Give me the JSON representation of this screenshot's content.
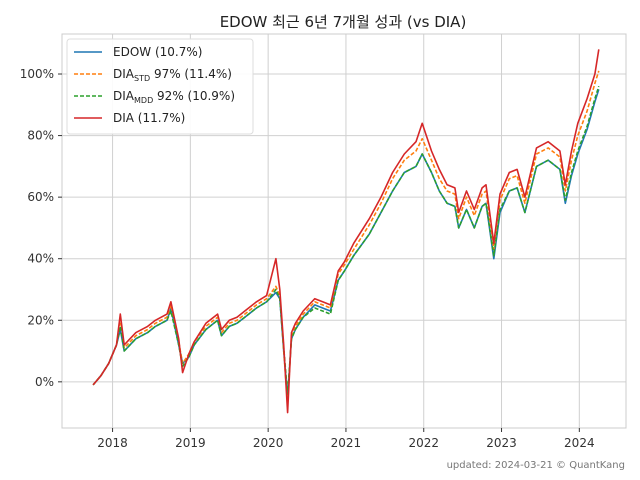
{
  "chart_data": {
    "type": "line",
    "title": "EDOW 최근 6년 7개월 성과 (vs DIA)",
    "xlabel": "",
    "ylabel": "",
    "x_ticks": [
      "2018",
      "2019",
      "2020",
      "2021",
      "2022",
      "2023",
      "2024"
    ],
    "y_ticks": [
      "0%",
      "20%",
      "40%",
      "60%",
      "80%",
      "100%"
    ],
    "ylim": [
      -15,
      113
    ],
    "xlim": [
      2017.35,
      2024.6
    ],
    "grid": true,
    "legend_position": "top-left",
    "legend": [
      {
        "label": "EDOW (10.7%)",
        "parts": [
          {
            "t": "EDOW (10.7%)",
            "sub": false
          }
        ]
      },
      {
        "label": "DIASTD 97% (11.4%)",
        "parts": [
          {
            "t": "DIA",
            "sub": false
          },
          {
            "t": "STD",
            "sub": true
          },
          {
            "t": " 97% (11.4%)",
            "sub": false
          }
        ]
      },
      {
        "label": "DIAMDD 92% (10.9%)",
        "parts": [
          {
            "t": "DIA",
            "sub": false
          },
          {
            "t": "MDD",
            "sub": true
          },
          {
            "t": " 92% (10.9%)",
            "sub": false
          }
        ]
      },
      {
        "label": "DIA (11.7%)",
        "parts": [
          {
            "t": "DIA (11.7%)",
            "sub": false
          }
        ]
      }
    ],
    "series": [
      {
        "name": "EDOW (10.7%)",
        "color": "#1f77b4",
        "dashed": false,
        "x": [
          2017.75,
          2017.85,
          2017.95,
          2018.05,
          2018.1,
          2018.15,
          2018.3,
          2018.45,
          2018.55,
          2018.7,
          2018.75,
          2018.85,
          2018.9,
          2018.98,
          2019.05,
          2019.2,
          2019.35,
          2019.4,
          2019.5,
          2019.6,
          2019.7,
          2019.85,
          2019.98,
          2020.1,
          2020.15,
          2020.2,
          2020.25,
          2020.3,
          2020.35,
          2020.45,
          2020.6,
          2020.7,
          2020.8,
          2020.9,
          2020.98,
          2021.1,
          2021.3,
          2021.45,
          2021.6,
          2021.75,
          2021.9,
          2021.98,
          2022.1,
          2022.2,
          2022.3,
          2022.4,
          2022.45,
          2022.55,
          2022.65,
          2022.75,
          2022.8,
          2022.9,
          2022.98,
          2023.1,
          2023.2,
          2023.3,
          2023.45,
          2023.6,
          2023.75,
          2023.82,
          2023.9,
          2023.98,
          2024.1,
          2024.2,
          2024.25
        ],
        "y": [
          -1,
          2,
          6,
          12,
          17,
          10,
          14,
          16,
          18,
          20,
          24,
          12,
          6,
          8,
          12,
          17,
          20,
          15,
          18,
          19,
          21,
          24,
          26,
          29,
          27,
          10,
          -5,
          14,
          17,
          21,
          25,
          24,
          23,
          33,
          36,
          41,
          48,
          55,
          62,
          68,
          70,
          74,
          68,
          62,
          58,
          57,
          50,
          56,
          50,
          57,
          58,
          40,
          55,
          62,
          63,
          55,
          70,
          72,
          69,
          58,
          67,
          74,
          82,
          91,
          95
        ]
      },
      {
        "name": "DIASTD 97% (11.4%)",
        "color": "#ff7f0e",
        "dashed": true,
        "x": [
          2017.75,
          2017.85,
          2017.95,
          2018.05,
          2018.1,
          2018.15,
          2018.3,
          2018.45,
          2018.55,
          2018.7,
          2018.75,
          2018.85,
          2018.9,
          2018.98,
          2019.05,
          2019.2,
          2019.35,
          2019.4,
          2019.5,
          2019.6,
          2019.7,
          2019.85,
          2019.98,
          2020.1,
          2020.15,
          2020.2,
          2020.25,
          2020.3,
          2020.35,
          2020.45,
          2020.6,
          2020.7,
          2020.8,
          2020.9,
          2020.98,
          2021.1,
          2021.3,
          2021.45,
          2021.6,
          2021.75,
          2021.9,
          2021.98,
          2022.1,
          2022.2,
          2022.3,
          2022.4,
          2022.45,
          2022.55,
          2022.65,
          2022.75,
          2022.8,
          2022.9,
          2022.98,
          2023.1,
          2023.2,
          2023.3,
          2023.45,
          2023.6,
          2023.75,
          2023.82,
          2023.9,
          2023.98,
          2024.1,
          2024.2,
          2024.25
        ],
        "y": [
          -1,
          2,
          6,
          12,
          19,
          11,
          15,
          17,
          19,
          21,
          25,
          13,
          6,
          9,
          13,
          18,
          21,
          16,
          19,
          20,
          22,
          25,
          27,
          31,
          28,
          10,
          -7,
          15,
          18,
          22,
          26,
          25,
          24,
          35,
          38,
          43,
          51,
          58,
          66,
          72,
          75,
          79,
          72,
          66,
          62,
          61,
          53,
          60,
          54,
          61,
          62,
          43,
          59,
          66,
          67,
          58,
          74,
          76,
          73,
          62,
          72,
          80,
          88,
          97,
          101
        ]
      },
      {
        "name": "DIAMDD 92% (10.9%)",
        "color": "#2ca02c",
        "dashed": true,
        "x": [
          2017.75,
          2017.85,
          2017.95,
          2018.05,
          2018.1,
          2018.15,
          2018.3,
          2018.45,
          2018.55,
          2018.7,
          2018.75,
          2018.85,
          2018.9,
          2018.98,
          2019.05,
          2019.2,
          2019.35,
          2019.4,
          2019.5,
          2019.6,
          2019.7,
          2019.85,
          2019.98,
          2020.1,
          2020.15,
          2020.2,
          2020.25,
          2020.3,
          2020.35,
          2020.45,
          2020.6,
          2020.7,
          2020.8,
          2020.9,
          2020.98,
          2021.1,
          2021.3,
          2021.45,
          2021.6,
          2021.75,
          2021.9,
          2021.98,
          2022.1,
          2022.2,
          2022.3,
          2022.4,
          2022.45,
          2022.55,
          2022.65,
          2022.75,
          2022.8,
          2022.9,
          2022.98,
          2023.1,
          2023.2,
          2023.3,
          2023.45,
          2023.6,
          2023.75,
          2023.82,
          2023.9,
          2023.98,
          2024.1,
          2024.2,
          2024.25
        ],
        "y": [
          -1,
          2,
          6,
          12,
          18,
          10,
          14,
          16,
          18,
          20,
          23,
          12,
          5,
          8,
          12,
          17,
          20,
          15,
          18,
          19,
          21,
          24,
          26,
          30,
          27,
          11,
          -4,
          14,
          17,
          21,
          24,
          23,
          22,
          33,
          36,
          41,
          48,
          55,
          62,
          68,
          70,
          74,
          68,
          62,
          58,
          57,
          50,
          56,
          50,
          57,
          58,
          41,
          56,
          62,
          63,
          55,
          70,
          72,
          69,
          59,
          68,
          75,
          83,
          92,
          96
        ]
      },
      {
        "name": "DIA (11.7%)",
        "color": "#d62728",
        "dashed": false,
        "x": [
          2017.75,
          2017.85,
          2017.95,
          2018.05,
          2018.1,
          2018.15,
          2018.3,
          2018.45,
          2018.55,
          2018.7,
          2018.75,
          2018.85,
          2018.9,
          2018.98,
          2019.05,
          2019.2,
          2019.35,
          2019.4,
          2019.5,
          2019.6,
          2019.7,
          2019.85,
          2019.98,
          2020.1,
          2020.15,
          2020.2,
          2020.25,
          2020.3,
          2020.35,
          2020.45,
          2020.6,
          2020.7,
          2020.8,
          2020.9,
          2020.98,
          2021.1,
          2021.3,
          2021.45,
          2021.6,
          2021.75,
          2021.9,
          2021.98,
          2022.1,
          2022.2,
          2022.3,
          2022.4,
          2022.45,
          2022.55,
          2022.65,
          2022.75,
          2022.8,
          2022.9,
          2022.98,
          2023.1,
          2023.2,
          2023.3,
          2023.45,
          2023.6,
          2023.75,
          2023.82,
          2023.9,
          2023.98,
          2024.1,
          2024.2,
          2024.25
        ],
        "y": [
          -1,
          2,
          6,
          12,
          22,
          12,
          16,
          18,
          20,
          22,
          26,
          14,
          3,
          9,
          13,
          19,
          22,
          17,
          20,
          21,
          23,
          26,
          28,
          40,
          30,
          12,
          -10,
          16,
          19,
          23,
          27,
          26,
          25,
          36,
          39,
          45,
          53,
          60,
          68,
          74,
          78,
          84,
          75,
          69,
          64,
          63,
          55,
          62,
          56,
          63,
          64,
          45,
          61,
          68,
          69,
          60,
          76,
          78,
          75,
          64,
          75,
          84,
          92,
          100,
          108
        ]
      }
    ]
  },
  "footer": "updated: 2024-03-21 © QuantKang"
}
